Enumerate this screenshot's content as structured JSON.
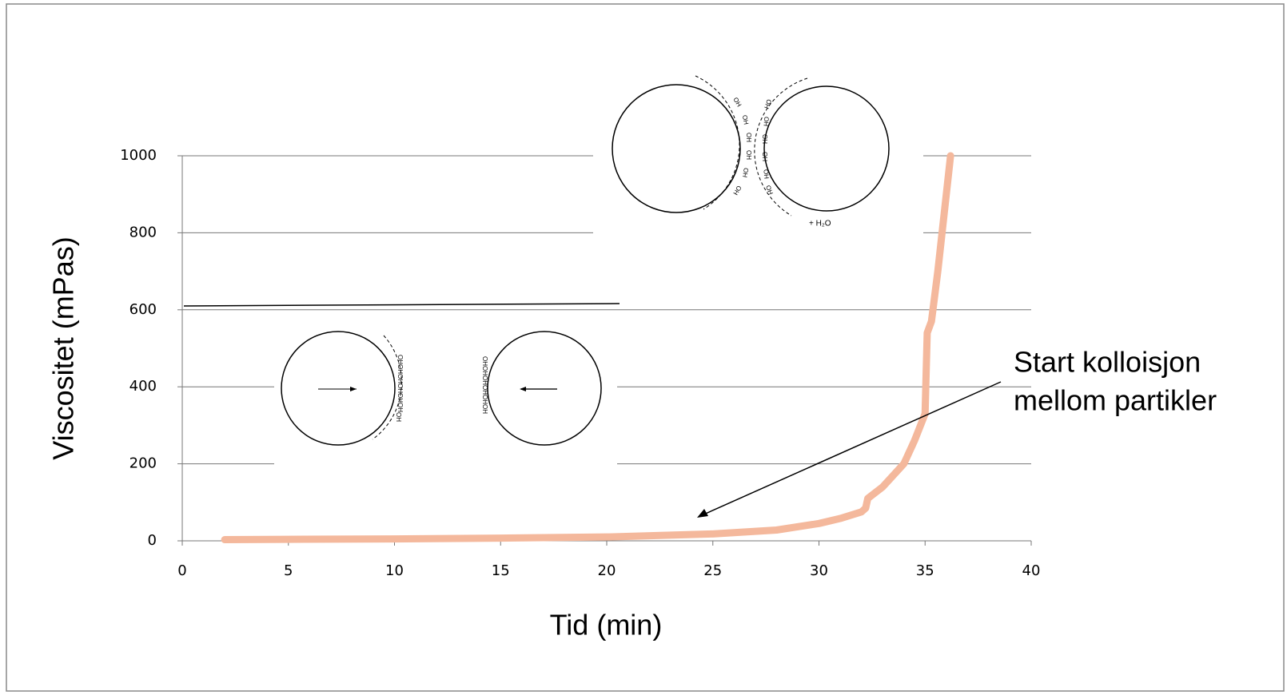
{
  "chart_data": {
    "type": "line",
    "x_label": "Tid (min)",
    "y_label": "Viscositet (mPas)",
    "xlim": [
      0,
      40
    ],
    "xticks": [
      0,
      5,
      10,
      15,
      20,
      25,
      30,
      35,
      40
    ],
    "ylim": [
      0,
      1000
    ],
    "yticks": [
      0,
      200,
      400,
      600,
      800,
      1000
    ],
    "grid": true,
    "series": [
      {
        "color": "#f4b89c",
        "x": [
          2,
          5,
          10,
          15,
          20,
          25,
          28,
          30,
          31,
          32,
          32.2,
          32.3,
          33,
          34,
          34.5,
          35,
          35.1,
          35.3,
          35.6,
          35.9,
          36.2
        ],
        "values": [
          3,
          4,
          5,
          7,
          10,
          18,
          28,
          45,
          58,
          75,
          85,
          110,
          140,
          200,
          260,
          330,
          540,
          570,
          700,
          850,
          1000
        ]
      }
    ],
    "annotation": [
      "Start kolloisjon",
      "mellom partikler"
    ],
    "illustration_labels": {
      "hydroxyl": "OH",
      "water": "+ H₂O"
    }
  }
}
